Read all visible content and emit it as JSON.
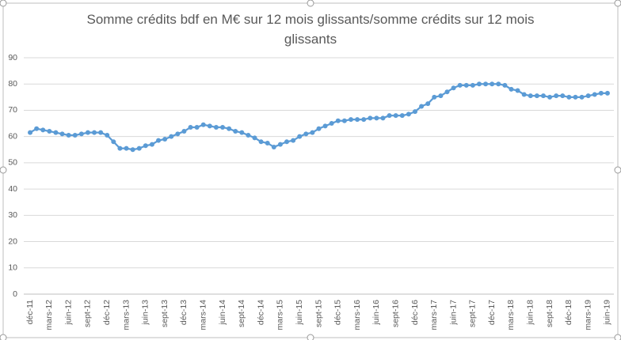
{
  "chart_data": {
    "type": "line",
    "title": "Somme crédits bdf en M€ sur 12 mois glissants/somme crédits sur 12 mois glissants",
    "categories": [
      "déc-11",
      null,
      null,
      "mars-12",
      null,
      null,
      "juin-12",
      null,
      null,
      "sept-12",
      null,
      null,
      "déc-12",
      null,
      null,
      "mars-13",
      null,
      null,
      "juin-13",
      null,
      null,
      "sept-13",
      null,
      null,
      "déc-13",
      null,
      null,
      "mars-14",
      null,
      null,
      "juin-14",
      null,
      null,
      "sept-14",
      null,
      null,
      "déc-14",
      null,
      null,
      "mars-15",
      null,
      null,
      "juin-15",
      null,
      null,
      "sept-15",
      null,
      null,
      "déc-15",
      null,
      null,
      "mars-16",
      null,
      null,
      "juin-16",
      null,
      null,
      "sept-16",
      null,
      null,
      "déc-16",
      null,
      null,
      "mars-17",
      null,
      null,
      "juin-17",
      null,
      null,
      "sept-17",
      null,
      null,
      "déc-17",
      null,
      null,
      "mars-18",
      null,
      null,
      "juin-18",
      null,
      null,
      "sept-18",
      null,
      null,
      "déc-18",
      null,
      null,
      "mars-19",
      null,
      null,
      "juin-19"
    ],
    "values": [
      61.5,
      63,
      62.5,
      62,
      61.5,
      61,
      60.5,
      60.5,
      61,
      61.5,
      61.5,
      61.5,
      60.5,
      58,
      55.5,
      55.5,
      55,
      55.5,
      56.5,
      57,
      58.5,
      59,
      60,
      61,
      62,
      63.5,
      63.5,
      64.5,
      64,
      63.5,
      63.5,
      63,
      62,
      61.5,
      60.5,
      59.5,
      58,
      57.5,
      56,
      57,
      58,
      58.5,
      60,
      61,
      61.5,
      63,
      64,
      65,
      66,
      66,
      66.5,
      66.5,
      66.5,
      67,
      67,
      67,
      68,
      68,
      68,
      68.5,
      69.5,
      71.5,
      72.5,
      75,
      75.5,
      77,
      78.5,
      79.5,
      79.5,
      79.5,
      80,
      80,
      80,
      80,
      79.5,
      78,
      77.5,
      76,
      75.5,
      75.5,
      75.5,
      75,
      75.5,
      75.5,
      75,
      75,
      75,
      75.5,
      76,
      76.5,
      76.5
    ],
    "color": "#5b9bd5",
    "ylim": [
      0,
      90
    ],
    "yticks": [
      0,
      10,
      20,
      30,
      40,
      50,
      60,
      70,
      80,
      90
    ],
    "grid": true
  }
}
